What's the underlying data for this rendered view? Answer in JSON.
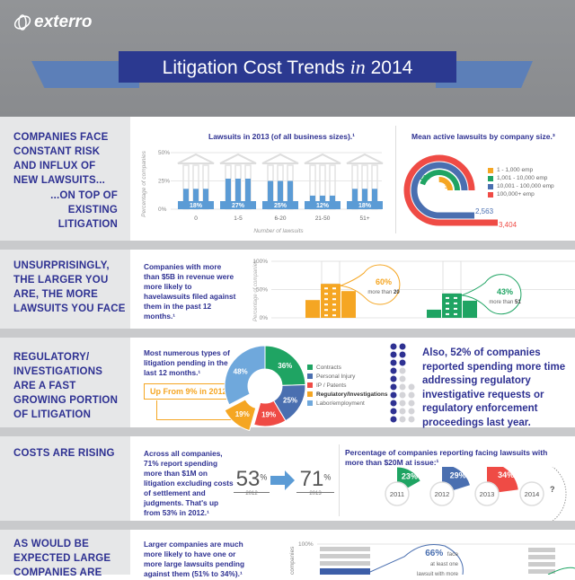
{
  "header": {
    "logo": "exterro",
    "title_a": "Litigation Cost Trends",
    "title_in": "in",
    "title_year": "2014"
  },
  "colors": {
    "navy": "#2e3192",
    "blue": "#5b9bd5",
    "orange": "#f5a623",
    "green": "#1fa463",
    "red": "#ef4b45",
    "slate": "#4a6fb0",
    "light_blue": "#6fa8dc"
  },
  "section1": {
    "left_a": "COMPANIES FACE CONSTANT RISK AND INFLUX OF NEW LAWSUITS...",
    "left_b": "...ON TOP OF EXISTING LITIGATION",
    "chart_a": {
      "type": "bar",
      "title": "Lawsuits in 2013 (of all business sizes).¹",
      "ylabel": "Percentage of companies",
      "xlabel": "Number of lawsuits",
      "yticks": [
        "50%",
        "25%",
        "0%"
      ],
      "ylim": [
        0,
        50
      ],
      "categories": [
        "0",
        "1-5",
        "6-20",
        "21-50",
        "51+"
      ],
      "values": [
        18,
        27,
        25,
        12,
        18
      ],
      "labels": [
        "18%",
        "27%",
        "25%",
        "12%",
        "18%"
      ]
    },
    "chart_b": {
      "type": "arc",
      "title": "Mean active lawsuits by company size.³",
      "series": [
        {
          "name": "1 - 1,000 emp",
          "value": "37",
          "color": "#f5a623"
        },
        {
          "name": "1,001 - 10,000 emp",
          "value": "228",
          "color": "#1fa463"
        },
        {
          "name": "10,001 - 100,000 emp",
          "value": "2,563",
          "color": "#4a6fb0"
        },
        {
          "name": "100,000+ emp",
          "value": "3,404",
          "color": "#ef4b45"
        }
      ]
    }
  },
  "section2": {
    "left": "UNSURPRISINGLY, THE LARGER YOU ARE, THE MORE LAWSUITS YOU FACE",
    "blurb": "Companies with more than $5B in revenue were more likely to havelawsuits filed against them in the past 12 months.¹",
    "chart": {
      "type": "bar",
      "ylabel": "Percentage of companies",
      "yticks": [
        "100%",
        "50%",
        "0%"
      ],
      "ylim": [
        0,
        100
      ],
      "groups": [
        {
          "value": 60,
          "pct": "60%",
          "label_a": "more than",
          "label_b": "20",
          "color": "#f5a623"
        },
        {
          "value": 43,
          "pct": "43%",
          "label_a": "more than",
          "label_b": "51",
          "color": "#1fa463"
        }
      ]
    }
  },
  "section3": {
    "left": "REGULATORY/ INVESTIGATIONS ARE A FAST GROWING PORTION OF LITIGATION",
    "blurb": "Most numerous types of litigation pending in the last 12 months.¹",
    "callout": "Up From 9% in 2012",
    "chart": {
      "type": "pie",
      "slices": [
        {
          "name": "Contracts",
          "value": 36,
          "label": "36%",
          "color": "#1fa463"
        },
        {
          "name": "Personal Injury",
          "value": 25,
          "label": "25%",
          "color": "#4a6fb0"
        },
        {
          "name": "IP / Patents",
          "value": 19,
          "label": "19%",
          "color": "#ef4b45"
        },
        {
          "name": "Regulatory/Investigations",
          "value": 19,
          "label": "19%",
          "color": "#f5a623"
        },
        {
          "name": "Labor/employment",
          "value": 48,
          "label": "48%",
          "color": "#6fa8dc"
        }
      ]
    },
    "stat": "Also, 52% of companies reported spending more time addressing regulatory investigative requests or regulatory enforcement proceedings last year."
  },
  "section4": {
    "left": "COSTS ARE RISING",
    "blurb": "Across all companies, 71% report spending more than $1M on litigation excluding costs of settlement and judgments. That's up from 53% in 2012.¹",
    "from": {
      "value": "53",
      "unit": "%",
      "year": "2012"
    },
    "to": {
      "value": "71",
      "unit": "%",
      "year": "2013"
    },
    "chart": {
      "type": "bar",
      "title": "Percentage of companies reporting facing lawsuits with more than $20M at issue:¹",
      "items": [
        {
          "year": "2011",
          "value": 23,
          "label": "23%",
          "color": "#1fa463"
        },
        {
          "year": "2012",
          "value": 29,
          "label": "29%",
          "color": "#4a6fb0"
        },
        {
          "year": "2013",
          "value": 34,
          "label": "34%",
          "color": "#ef4b45"
        },
        {
          "year": "2014",
          "value": null,
          "label": "?",
          "color": "#999999"
        }
      ]
    }
  },
  "section5": {
    "left": "AS WOULD BE EXPECTED LARGE COMPANIES ARE",
    "blurb": "Larger companies are much more likely to have one or more large lawsuits pending against them (51% to 34%).¹",
    "ytick": "100%",
    "ylabel": "companies",
    "callout_pct": "66%",
    "callout_a": "face",
    "callout_b": "at least one",
    "callout_c": "lawsuit with more"
  }
}
